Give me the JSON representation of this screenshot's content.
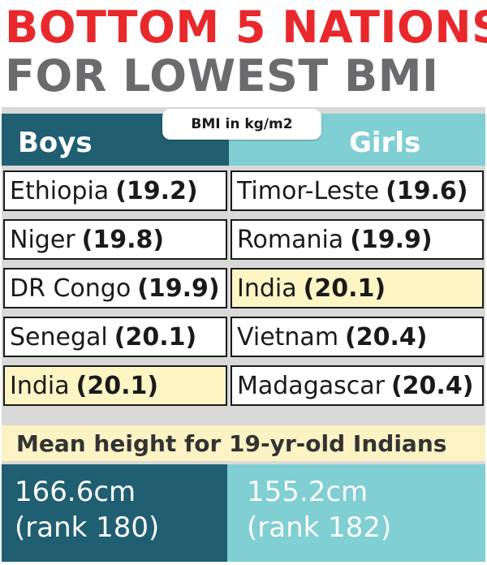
{
  "title": {
    "line1": "BOTTOM 5 NATIONS",
    "line2": "FOR LOWEST BMI"
  },
  "header": {
    "boys": "Boys",
    "girls": "Girls",
    "unit": "BMI in kg/m2"
  },
  "boys": [
    {
      "country": "Ethiopia",
      "bmi": "(19.2)"
    },
    {
      "country": "Niger",
      "bmi": "(19.8)"
    },
    {
      "country": "DR Congo",
      "bmi": "(19.9)"
    },
    {
      "country": "Senegal",
      "bmi": "(20.1)"
    },
    {
      "country": "India",
      "bmi": "(20.1)"
    }
  ],
  "girls": [
    {
      "country": "Timor-Leste",
      "bmi": "(19.6)"
    },
    {
      "country": "Romania",
      "bmi": "(19.9)"
    },
    {
      "country": "India",
      "bmi": "(20.1)"
    },
    {
      "country": "Vietnam",
      "bmi": "(20.4)"
    },
    {
      "country": "Madagascar",
      "bmi": "(20.4)"
    }
  ],
  "highlight_color": "#fdf6c4",
  "mean_height": {
    "label": "Mean height for 19-yr-old Indians",
    "boys": {
      "value": "166.6cm",
      "rank": "(rank 180)"
    },
    "girls": {
      "value": "155.2cm",
      "rank": "(rank 182)"
    }
  },
  "colors": {
    "title_red": "#e8282a",
    "title_gray": "#6b6b6d",
    "boys_teal": "#1f5f71",
    "girls_teal": "#7fcfd3"
  }
}
